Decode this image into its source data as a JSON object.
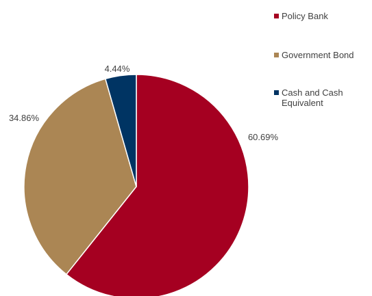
{
  "chart_data": {
    "type": "pie",
    "start_angle_deg": 0,
    "direction": "clockwise",
    "slices": [
      {
        "label": "Policy Bank",
        "value": 60.69,
        "display": "60.69%",
        "color": "#A50021"
      },
      {
        "label": "Government Bond",
        "value": 34.86,
        "display": "34.86%",
        "color": "#AB8654"
      },
      {
        "label": "Cash and Cash Equivalent",
        "value": 4.44,
        "display": "4.44%",
        "color": "#003463"
      }
    ],
    "legend": {
      "placement": "top-right",
      "entries": [
        {
          "line1": "Policy Bank",
          "line2": ""
        },
        {
          "line1": "Government Bond",
          "line2": ""
        },
        {
          "line1": "Cash and Cash",
          "line2": "Equivalent"
        }
      ]
    },
    "slice_border_color": "#ffffff"
  }
}
